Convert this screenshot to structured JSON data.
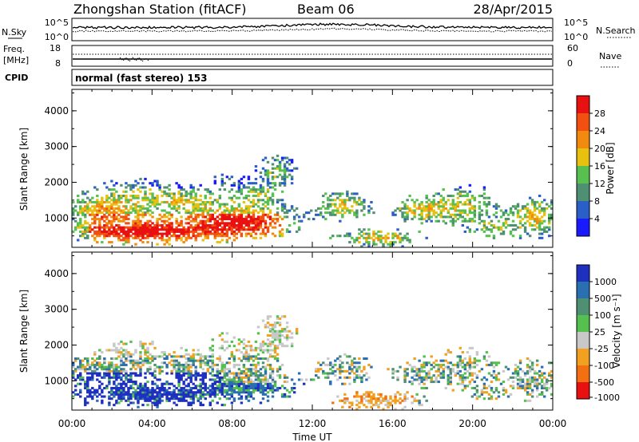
{
  "header": {
    "title": "Zhongshan Station (fitACF)",
    "beam": "Beam 06",
    "date": "28/Apr/2015"
  },
  "noise_panel": {
    "left_label": "N.Sky",
    "left_ticks": [
      "10^5",
      "10^0"
    ],
    "right_label": "N.Search",
    "right_ticks": [
      "10^5",
      "10^0"
    ]
  },
  "freq_panel": {
    "left_label_1": "Freq.",
    "left_label_2": "[MHz]",
    "left_ticks": [
      "18",
      "8"
    ],
    "right_label": "Nave",
    "right_ticks": [
      "60",
      "0"
    ]
  },
  "cpid": {
    "label": "CPID",
    "text": "normal (fast stereo) 153"
  },
  "chart_data": [
    {
      "type": "heatmap",
      "name": "power",
      "ylabel": "Slant Range [km]",
      "yticks": [
        1000,
        2000,
        3000,
        4000
      ],
      "ylim": [
        180,
        4600
      ],
      "xlim": [
        0,
        24
      ],
      "colorbar_label": "Power [dB]",
      "colorbar_ticks": [
        "4",
        "8",
        "12",
        "16",
        "20",
        "24",
        "28"
      ],
      "colors": [
        "#1a1aff",
        "#2a5fc8",
        "#4f8f72",
        "#58c050",
        "#e8c010",
        "#f28a10",
        "#f25010",
        "#e81010"
      ]
    },
    {
      "type": "heatmap",
      "name": "velocity",
      "ylabel": "Slant Range [km]",
      "yticks": [
        1000,
        2000,
        3000,
        4000
      ],
      "ylim": [
        180,
        4600
      ],
      "xlim": [
        0,
        24
      ],
      "colorbar_label": "Velocity [m s⁻¹]",
      "colorbar_ticks": [
        "1000",
        "500",
        "100",
        "25",
        "-25",
        "-100",
        "-500",
        "-1000"
      ],
      "colors": [
        "#1f2fc0",
        "#2a6fb0",
        "#4f8f72",
        "#55c050",
        "#c8c8c8",
        "#f2a020",
        "#f27010",
        "#e81010"
      ]
    }
  ],
  "x_axis": {
    "ticks": [
      "00:00",
      "04:00",
      "08:00",
      "12:00",
      "16:00",
      "20:00",
      "00:00"
    ],
    "label": "Time UT"
  }
}
